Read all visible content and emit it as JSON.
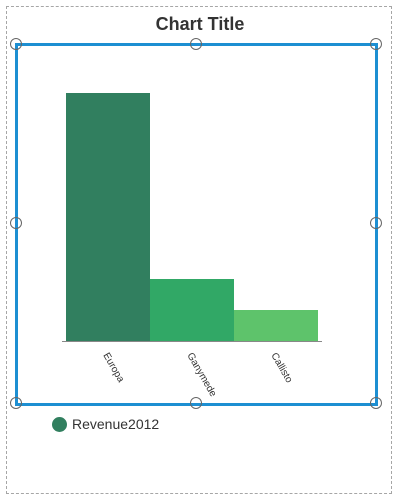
{
  "chart_data": {
    "type": "bar",
    "title": "Chart Title",
    "categories": [
      "Europa",
      "Ganymede",
      "Callisto"
    ],
    "series": [
      {
        "name": "Revenue2012",
        "values": [
          100,
          25,
          12.5
        ],
        "colors": [
          "#317f5f",
          "#31a866",
          "#5ec36b"
        ]
      }
    ],
    "ylim": [
      0,
      100
    ],
    "grid": false,
    "legend": "bottom-left",
    "legend_color": "#317f5f"
  },
  "selection": {
    "color": "#1d8fd2",
    "handle_names": [
      "top-left",
      "top-center",
      "top-right",
      "middle-left",
      "middle-right",
      "bottom-left",
      "bottom-center",
      "bottom-right"
    ]
  }
}
